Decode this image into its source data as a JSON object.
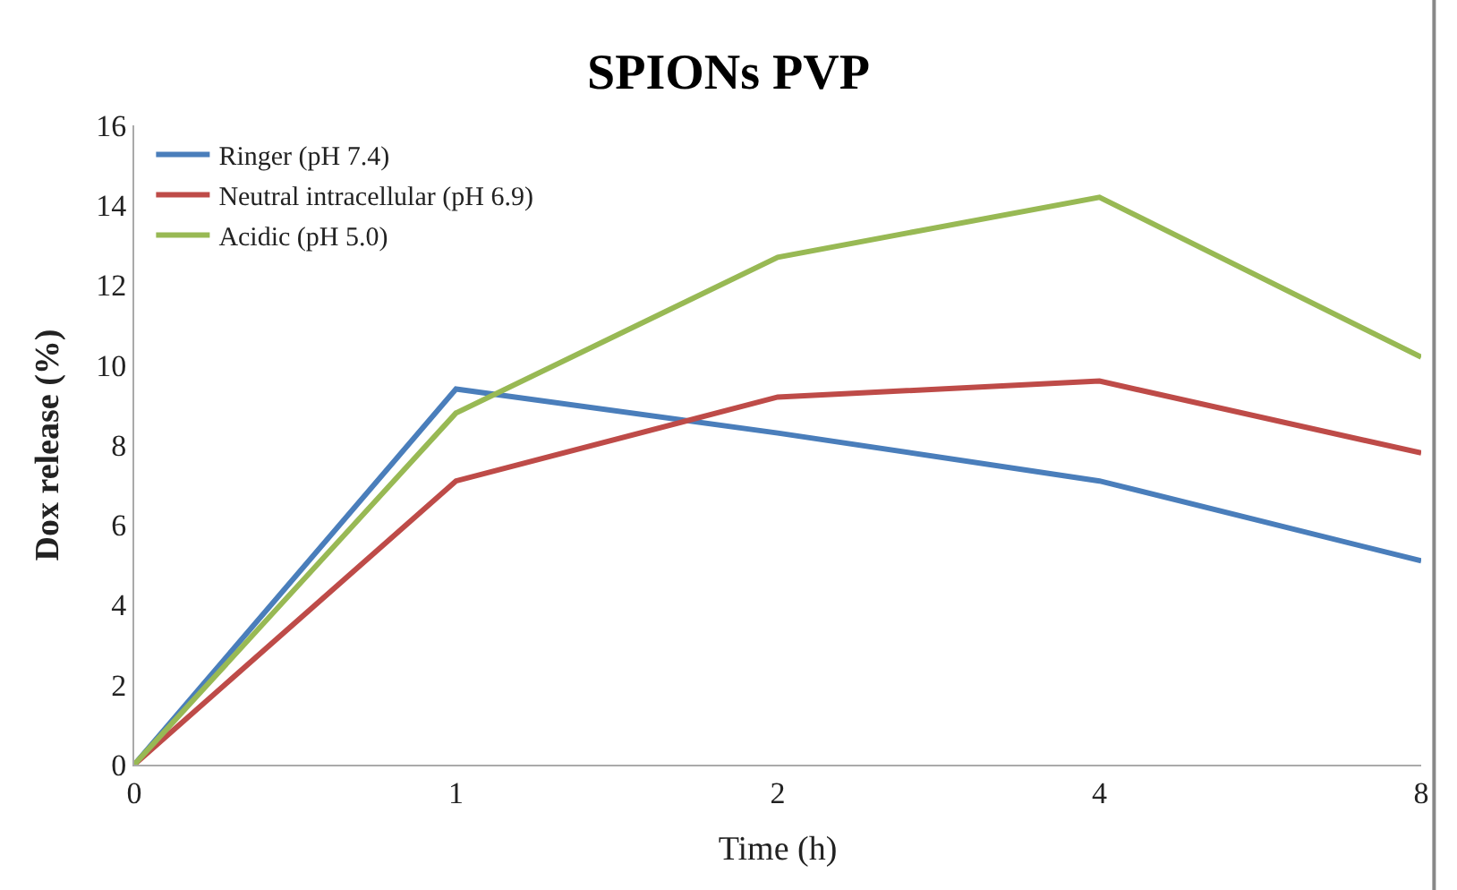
{
  "chart_data": {
    "type": "line",
    "title": "SPIONs PVP",
    "xlabel": "Time (h)",
    "ylabel": "Dox release (%)",
    "categories": [
      "0",
      "1",
      "2",
      "4",
      "8"
    ],
    "series": [
      {
        "name": "Ringer (pH 7.4)",
        "color": "#4a7ebb",
        "values": [
          0,
          9.4,
          8.3,
          7.1,
          5.1
        ]
      },
      {
        "name": "Neutral intracellular (pH 6.9)",
        "color": "#be4b48",
        "values": [
          0,
          7.1,
          9.2,
          9.6,
          7.8
        ]
      },
      {
        "name": "Acidic (pH 5.0)",
        "color": "#98b954",
        "values": [
          0,
          8.8,
          12.7,
          14.2,
          10.2
        ]
      }
    ],
    "ylim": [
      0,
      16
    ],
    "yticks": [
      0,
      2,
      4,
      6,
      8,
      10,
      12,
      14,
      16
    ],
    "legend": "top left",
    "marker": "none",
    "line_style": "solid"
  }
}
